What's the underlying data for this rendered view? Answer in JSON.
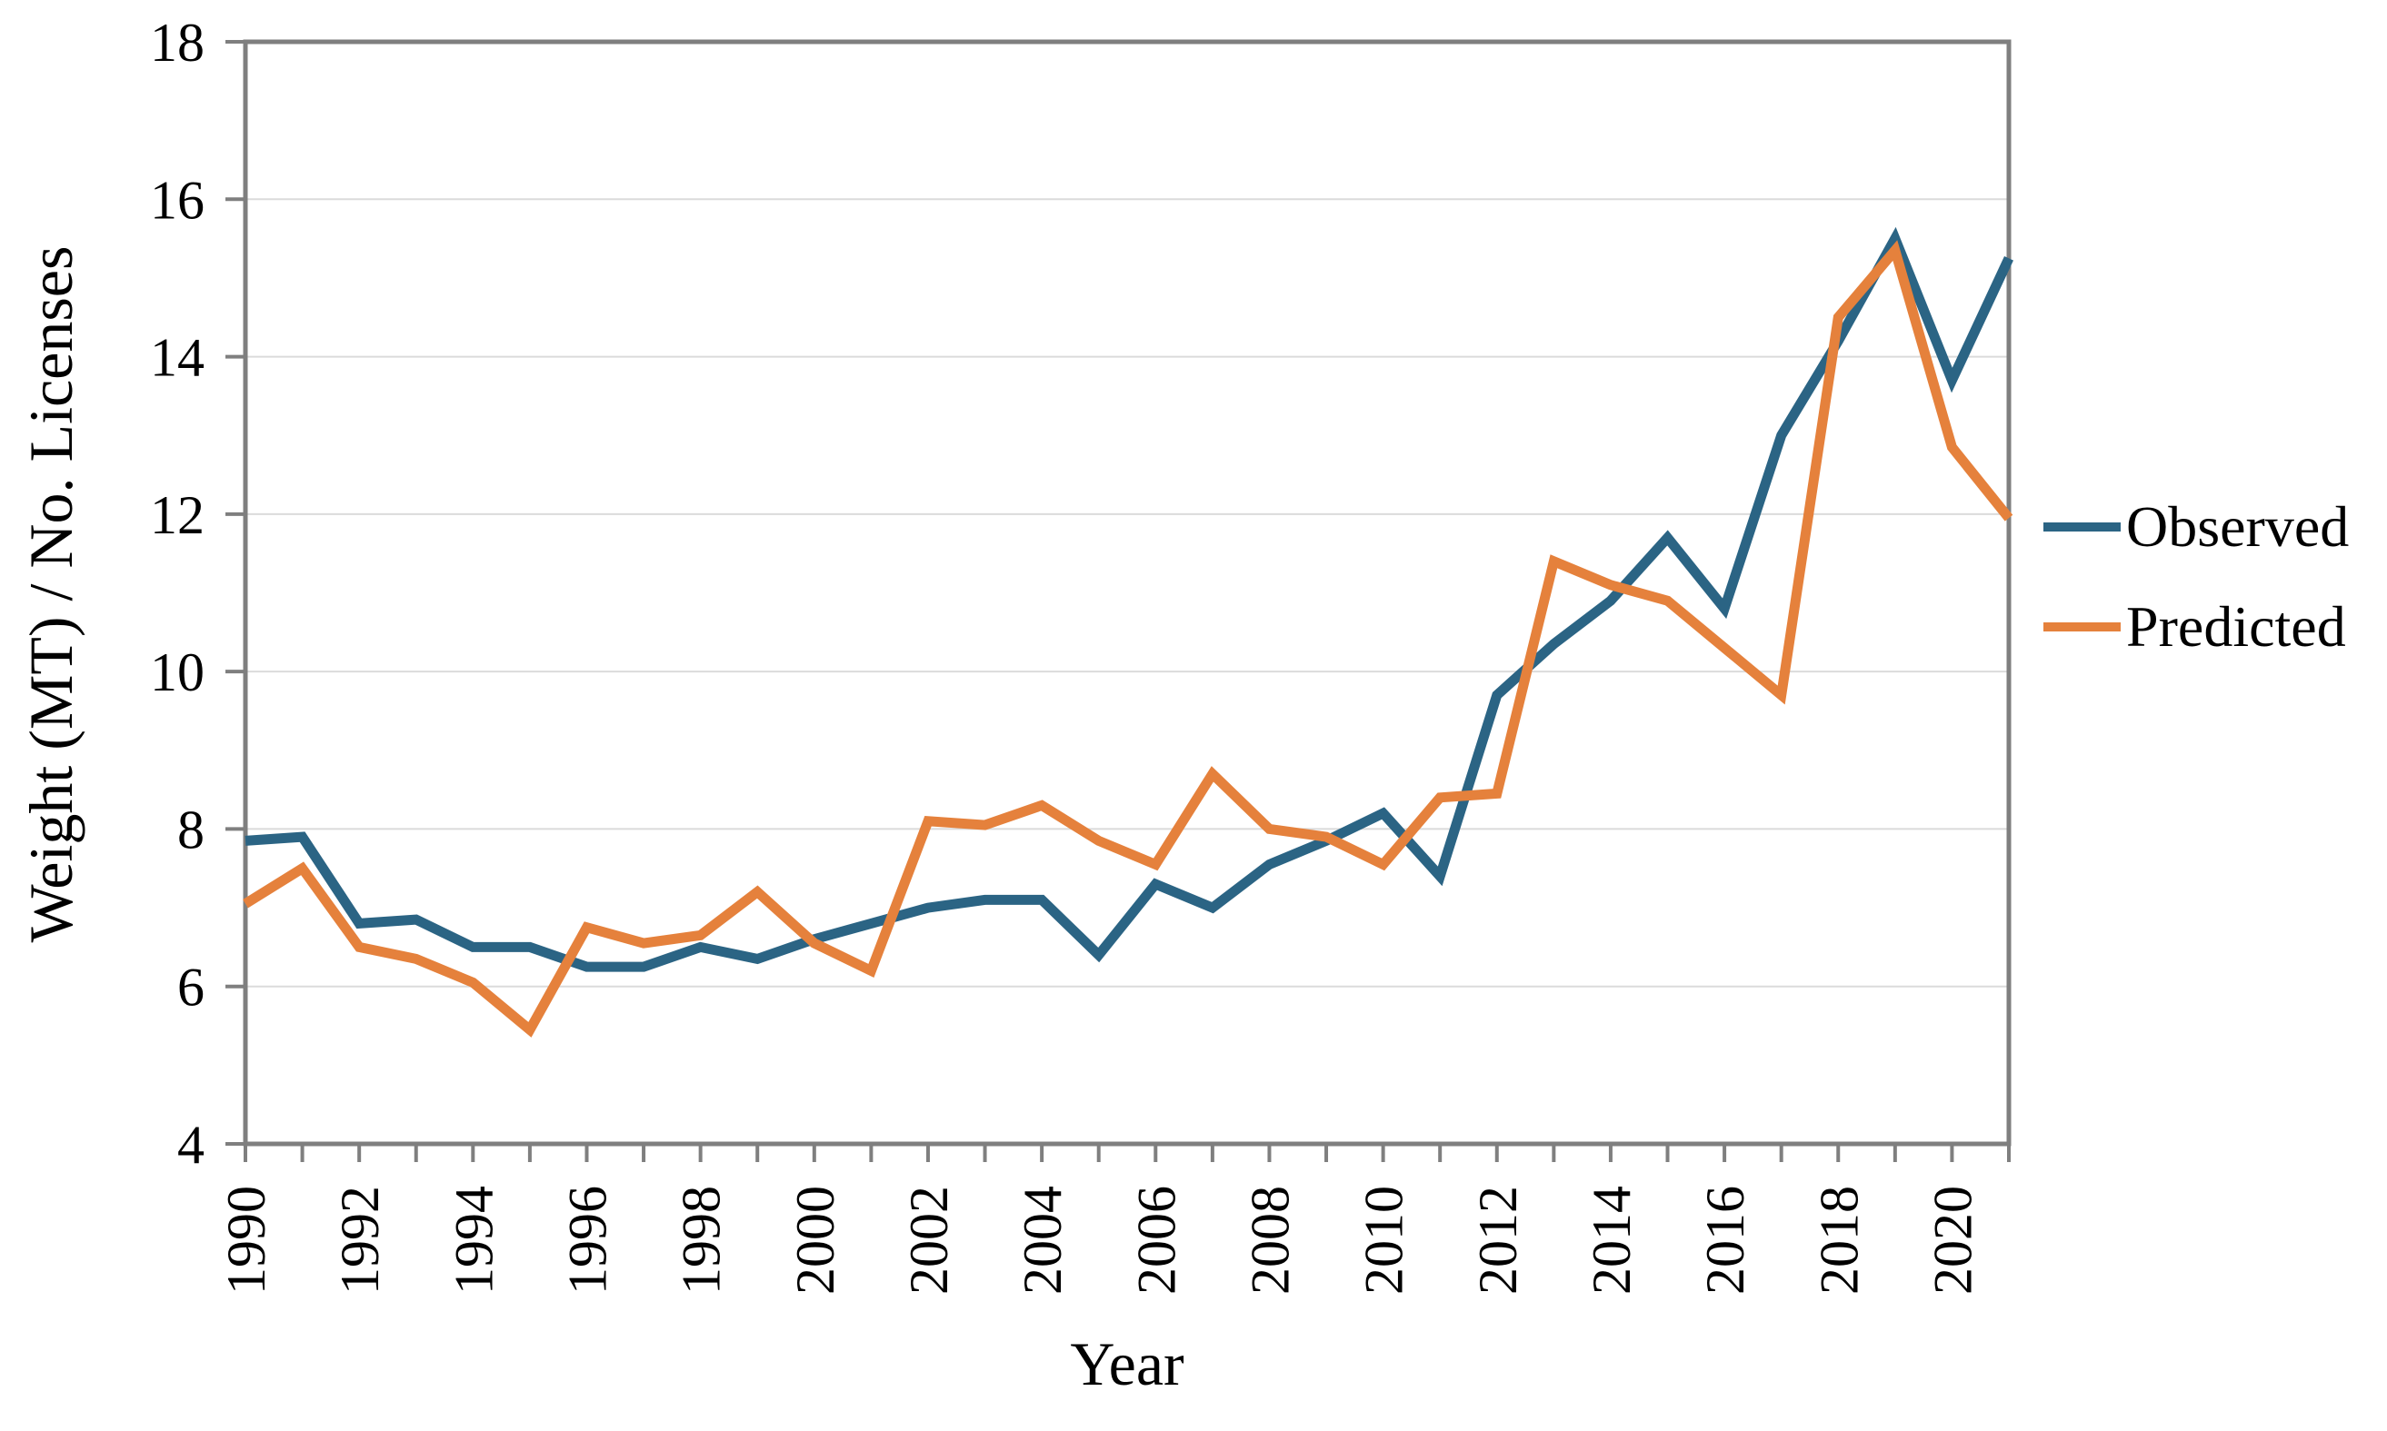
{
  "figure": {
    "background": "#FFFFFF",
    "axis_color": "#7F7F7F",
    "gridline_color": "#DBDBDB",
    "text_color": "#000000"
  },
  "chart_data": {
    "type": "line",
    "title": "",
    "xlabel": "Year",
    "ylabel": "Weight (MT) / No. Licenses",
    "xlim": [
      1990,
      2021
    ],
    "ylim": [
      4,
      18
    ],
    "grid": "horizontal-only",
    "legend_position": "right-outside",
    "yticks": [
      4,
      6,
      8,
      10,
      12,
      14,
      16,
      18
    ],
    "xticks_minor_every_year": true,
    "xticks": [
      1990,
      1992,
      1994,
      1996,
      1998,
      2000,
      2002,
      2004,
      2006,
      2008,
      2010,
      2012,
      2014,
      2016,
      2018,
      2020
    ],
    "x": [
      1990,
      1991,
      1992,
      1993,
      1994,
      1995,
      1996,
      1997,
      1998,
      1999,
      2000,
      2001,
      2002,
      2003,
      2004,
      2005,
      2006,
      2007,
      2008,
      2009,
      2010,
      2011,
      2012,
      2013,
      2014,
      2015,
      2016,
      2017,
      2018,
      2019,
      2020,
      2021
    ],
    "series": [
      {
        "name": "Observed",
        "color": "#2B6484",
        "values": [
          7.85,
          7.9,
          6.8,
          6.85,
          6.5,
          6.5,
          6.25,
          6.25,
          6.5,
          6.35,
          6.6,
          6.8,
          7.0,
          7.1,
          7.1,
          6.4,
          7.3,
          7.0,
          7.55,
          7.85,
          8.2,
          7.4,
          9.7,
          10.35,
          10.9,
          11.7,
          10.8,
          13.0,
          14.2,
          15.5,
          13.7,
          15.25
        ]
      },
      {
        "name": "Predicted",
        "color": "#E5813C",
        "values": [
          7.05,
          7.5,
          6.5,
          6.35,
          6.05,
          5.45,
          6.75,
          6.55,
          6.65,
          7.2,
          6.55,
          6.2,
          8.1,
          8.05,
          8.3,
          7.85,
          7.55,
          8.7,
          8.0,
          7.9,
          7.55,
          8.4,
          8.45,
          11.4,
          11.1,
          10.9,
          10.3,
          9.7,
          14.5,
          15.35,
          12.85,
          11.95
        ]
      }
    ]
  }
}
